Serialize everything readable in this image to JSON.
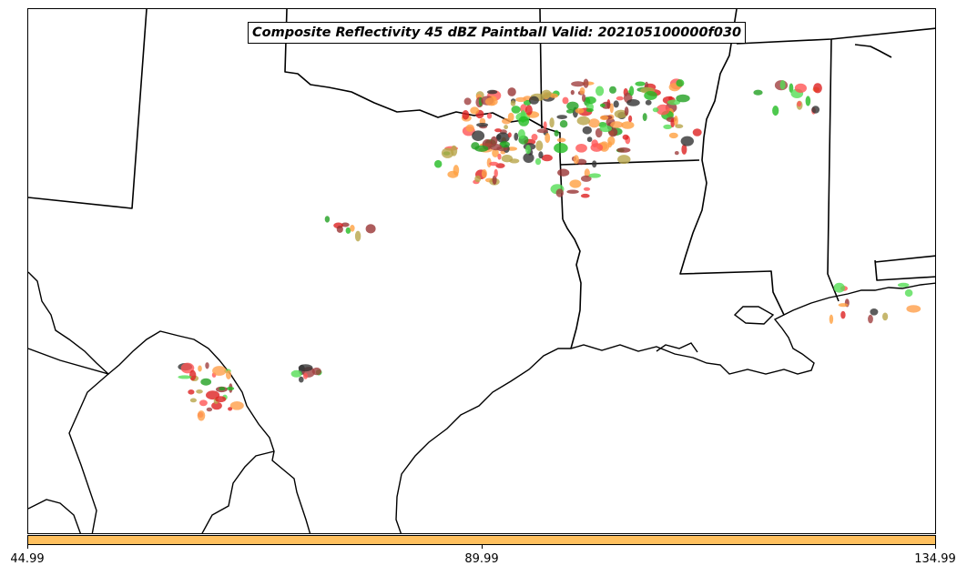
{
  "title": "Composite Reflectivity 45 dBZ Paintball Valid: 202105100000f030",
  "colorbar": {
    "color": "#ffc05e",
    "ticks": [
      "44.99",
      "89.99",
      "134.99"
    ]
  },
  "colors": {
    "member_palette": [
      "#ff9f4a",
      "#ff5555",
      "#22bb22",
      "#993333",
      "#333333",
      "#ffa040",
      "#55dd55",
      "#b8a54a",
      "#a04040",
      "#22a022",
      "#dd2222"
    ]
  }
}
